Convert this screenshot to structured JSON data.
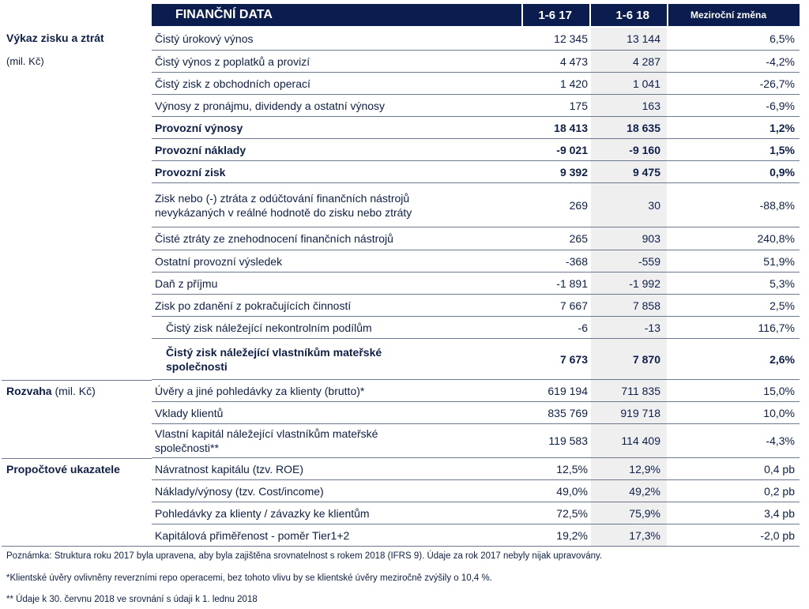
{
  "header": {
    "title": "FINANČNÍ DATA",
    "col1": "1-6 17",
    "col2": "1-6 18",
    "col3": "Meziroční změna"
  },
  "sections": {
    "pl_title": "Výkaz zisku a ztrát",
    "pl_unit": "(mil. Kč)",
    "bs_title": "Rozvaha",
    "bs_unit": "(mil. Kč)",
    "ratios_title": "Propočtové ukazatele"
  },
  "rows": [
    {
      "label": "Čistý úrokový výnos",
      "v1": "12 345",
      "v2": "13 144",
      "v3": "6,5%"
    },
    {
      "label": "Čistý výnos z poplatků a provizí",
      "v1": "4 473",
      "v2": "4 287",
      "v3": "-4,2%"
    },
    {
      "label": "Čistý zisk z obchodních operací",
      "v1": "1 420",
      "v2": "1 041",
      "v3": "-26,7%"
    },
    {
      "label": "Výnosy z pronájmu, dividendy a ostatní výnosy",
      "v1": "175",
      "v2": "163",
      "v3": "-6,9%"
    },
    {
      "label": "Provozní výnosy",
      "v1": "18 413",
      "v2": "18 635",
      "v3": "1,2%"
    },
    {
      "label": "Provozní náklady",
      "v1": "-9 021",
      "v2": "-9 160",
      "v3": "1,5%"
    },
    {
      "label": "Provozní zisk",
      "v1": "9 392",
      "v2": "9 475",
      "v3": "0,9%"
    },
    {
      "label_line1": "Zisk nebo (-) ztráta z odúčtování finančních nástrojů",
      "label_line2": "nevykázaných v reálné hodnotě do zisku nebo ztráty",
      "v1": "269",
      "v2": "30",
      "v3": "-88,8%"
    },
    {
      "label": "Čisté ztráty ze znehodnocení finančních nástrojů",
      "v1": "265",
      "v2": "903",
      "v3": "240,8%"
    },
    {
      "label": "Ostatní provozní výsledek",
      "v1": "-368",
      "v2": "-559",
      "v3": "51,9%"
    },
    {
      "label": "Daň z příjmu",
      "v1": "-1 891",
      "v2": "-1 992",
      "v3": "5,3%"
    },
    {
      "label": "Zisk po zdanění z pokračujících činností",
      "v1": "7 667",
      "v2": "7 858",
      "v3": "2,5%"
    },
    {
      "label": "Čistý zisk náležející nekontrolním podílům",
      "v1": "-6",
      "v2": "-13",
      "v3": "116,7%"
    },
    {
      "label_line1": "Čistý zisk náležející vlastníkům mateřské",
      "label_line2": "společnosti",
      "v1": "7 673",
      "v2": "7 870",
      "v3": "2,6%"
    },
    {
      "label": "Úvěry a jiné pohledávky za klienty (brutto)*",
      "v1": "619 194",
      "v2": "711 835",
      "v3": "15,0%"
    },
    {
      "label": "Vklady klientů",
      "v1": "835 769",
      "v2": "919 718",
      "v3": "10,0%"
    },
    {
      "label_line1": "Vlastní kapitál náležející vlastníkům mateřské",
      "label_line2": "společnosti**",
      "v1": "119 583",
      "v2": "114 409",
      "v3": "-4,3%"
    },
    {
      "label": "Návratnost kapitálu (tzv. ROE)",
      "v1": "12,5%",
      "v2": "12,9%",
      "v3": "0,4 pb"
    },
    {
      "label": "Náklady/výnosy (tzv. Cost/income)",
      "v1": "49,0%",
      "v2": "49,2%",
      "v3": "0,2 pb"
    },
    {
      "label": "Pohledávky za klienty / závazky ke klientům",
      "v1": "72,5%",
      "v2": "75,9%",
      "v3": "3,4 pb"
    },
    {
      "label": "Kapitálová přiměřenost - poměr Tier1+2",
      "v1": "19,2%",
      "v2": "17,3%",
      "v3": "-2,0 pb"
    }
  ],
  "notes": {
    "n1": "Poznámka: Struktura roku 2017 byla upravena, aby byla zajištěna srovnatelnost s rokem 2018 (IFRS 9). Údaje za rok 2017 nebyly nijak upravovány.",
    "n2": "*Klientské úvěry ovlivněny reverzními repo operacemi, bez tohoto vlivu by se klientské úvěry meziročně zvýšily o 10,4 %.",
    "n3": "** Údaje k 30. červnu 2018 ve srovnání s údaji k 1. lednu 2018"
  }
}
